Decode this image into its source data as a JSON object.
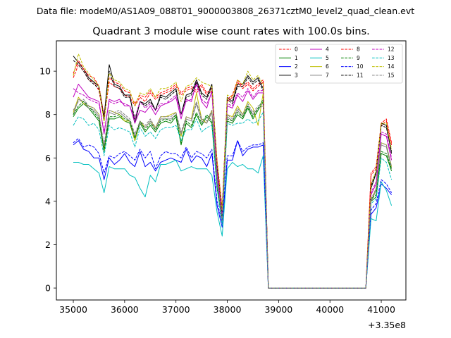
{
  "figure": {
    "suptitle": "Data file: modeM0/AS1A09_088T01_9000003808_26371cztM0_level2_quad_clean.evt"
  },
  "chart_data": {
    "type": "line",
    "title": "Quadrant 3 module wise count rates with 100.0s bins.",
    "xlabel": "",
    "ylabel": "",
    "x_offset_label": "+3.35e8",
    "xlim": [
      34670,
      41480
    ],
    "ylim": [
      -0.55,
      11.4
    ],
    "xticks": [
      35000,
      36000,
      37000,
      38000,
      39000,
      40000,
      41000
    ],
    "yticks": [
      0,
      2,
      4,
      6,
      8,
      10
    ],
    "grid": false,
    "legend": {
      "placement": "top-right",
      "columns": 4
    },
    "x": [
      35000,
      35100,
      35200,
      35300,
      35400,
      35500,
      35600,
      35700,
      35800,
      35900,
      36000,
      36100,
      36200,
      36300,
      36400,
      36500,
      36600,
      36700,
      36800,
      36900,
      37000,
      37100,
      37200,
      37300,
      37400,
      37500,
      37600,
      37700,
      37800,
      37900,
      38000,
      38100,
      38200,
      38300,
      38400,
      38500,
      38600,
      38700,
      38800,
      38900,
      39000,
      39100,
      39200,
      39300,
      39400,
      39500,
      39600,
      39700,
      39800,
      39900,
      40000,
      40100,
      40200,
      40300,
      40400,
      40500,
      40600,
      40700,
      40800,
      40900,
      41000,
      41100,
      41200
    ],
    "series": [
      {
        "name": "0",
        "color": "#ff0000",
        "dash": true,
        "values": [
          9.7,
          10.3,
          10.0,
          9.6,
          9.5,
          9.1,
          7.8,
          9.5,
          9.3,
          9.2,
          8.9,
          8.8,
          8.4,
          8.8,
          8.6,
          9.0,
          8.7,
          8.9,
          9.0,
          9.1,
          9.3,
          8.9,
          9.1,
          9.2,
          9.0,
          9.3,
          8.9,
          9.1,
          5.8,
          3.6,
          8.6,
          8.8,
          9.5,
          9.2,
          9.4,
          9.1,
          9.3,
          9.5,
          0.0,
          0.0,
          0.0,
          0.0,
          0.0,
          0.0,
          0.0,
          0.0,
          0.0,
          0.0,
          0.0,
          0.0,
          0.0,
          0.0,
          0.0,
          0.0,
          0.0,
          0.0,
          0.0,
          0.0,
          5.2,
          5.5,
          7.5,
          7.7,
          6.6
        ]
      },
      {
        "name": "1",
        "color": "#008000",
        "dash": false,
        "values": [
          7.9,
          8.3,
          8.5,
          8.3,
          8.0,
          7.7,
          6.3,
          7.8,
          7.8,
          7.9,
          7.7,
          7.6,
          6.8,
          7.6,
          7.2,
          7.5,
          7.2,
          7.6,
          7.7,
          7.6,
          7.9,
          6.6,
          7.6,
          7.4,
          8.0,
          7.5,
          7.9,
          7.6,
          4.6,
          3.1,
          7.7,
          7.6,
          8.0,
          7.8,
          8.3,
          7.8,
          8.2,
          8.6,
          0.0,
          0.0,
          0.0,
          0.0,
          0.0,
          0.0,
          0.0,
          0.0,
          0.0,
          0.0,
          0.0,
          0.0,
          0.0,
          0.0,
          0.0,
          0.0,
          0.0,
          0.0,
          0.0,
          0.0,
          4.0,
          4.2,
          6.2,
          6.1,
          5.4
        ]
      },
      {
        "name": "2",
        "color": "#0000ff",
        "dash": false,
        "values": [
          6.6,
          6.8,
          6.4,
          6.3,
          6.0,
          6.0,
          5.0,
          6.0,
          5.7,
          5.9,
          6.2,
          5.8,
          5.6,
          6.3,
          5.6,
          5.8,
          5.4,
          5.8,
          5.9,
          6.0,
          5.9,
          5.8,
          6.4,
          5.8,
          6.1,
          6.0,
          5.6,
          6.2,
          3.8,
          2.8,
          5.9,
          5.9,
          6.8,
          6.1,
          6.4,
          6.5,
          6.5,
          6.6,
          0.0,
          0.0,
          0.0,
          0.0,
          0.0,
          0.0,
          0.0,
          0.0,
          0.0,
          0.0,
          0.0,
          0.0,
          0.0,
          0.0,
          0.0,
          0.0,
          0.0,
          0.0,
          0.0,
          0.0,
          3.4,
          3.7,
          4.8,
          4.6,
          4.3
        ]
      },
      {
        "name": "3",
        "color": "#000000",
        "dash": false,
        "values": [
          10.7,
          10.4,
          10.1,
          9.7,
          9.5,
          9.3,
          7.9,
          10.3,
          9.4,
          9.3,
          8.9,
          8.9,
          7.6,
          8.6,
          8.5,
          8.7,
          8.2,
          8.9,
          8.8,
          9.0,
          9.2,
          8.0,
          8.9,
          9.0,
          9.6,
          9.0,
          8.8,
          9.4,
          5.7,
          3.5,
          8.8,
          8.6,
          9.4,
          9.4,
          9.8,
          9.5,
          9.7,
          9.2,
          0.0,
          0.0,
          0.0,
          0.0,
          0.0,
          0.0,
          0.0,
          0.0,
          0.0,
          0.0,
          0.0,
          0.0,
          0.0,
          0.0,
          0.0,
          0.0,
          0.0,
          0.0,
          0.0,
          0.0,
          4.6,
          5.3,
          7.6,
          7.5,
          6.2
        ]
      },
      {
        "name": "4",
        "color": "#bf00bf",
        "dash": false,
        "values": [
          8.8,
          9.4,
          9.1,
          8.8,
          8.7,
          8.6,
          7.1,
          8.7,
          8.6,
          8.7,
          8.4,
          8.4,
          7.6,
          8.2,
          8.1,
          8.4,
          8.0,
          8.4,
          8.5,
          8.6,
          8.8,
          7.8,
          8.7,
          8.6,
          9.5,
          8.6,
          8.3,
          9.1,
          5.2,
          3.2,
          8.4,
          8.3,
          8.9,
          8.6,
          9.1,
          8.7,
          9.0,
          9.0,
          0.0,
          0.0,
          0.0,
          0.0,
          0.0,
          0.0,
          0.0,
          0.0,
          0.0,
          0.0,
          0.0,
          0.0,
          0.0,
          0.0,
          0.0,
          0.0,
          0.0,
          0.0,
          0.0,
          0.0,
          4.3,
          4.8,
          7.1,
          7.0,
          5.9
        ]
      },
      {
        "name": "5",
        "color": "#00bfbf",
        "dash": false,
        "values": [
          5.8,
          5.8,
          5.7,
          5.7,
          5.5,
          5.3,
          4.4,
          5.6,
          5.5,
          5.5,
          5.5,
          5.2,
          5.1,
          4.6,
          4.2,
          5.2,
          4.9,
          5.7,
          5.7,
          5.8,
          5.9,
          5.4,
          5.5,
          5.6,
          5.5,
          5.5,
          5.5,
          5.2,
          3.5,
          2.4,
          5.5,
          5.8,
          5.6,
          5.7,
          5.5,
          5.5,
          5.3,
          6.1,
          0.0,
          0.0,
          0.0,
          0.0,
          0.0,
          0.0,
          0.0,
          0.0,
          0.0,
          0.0,
          0.0,
          0.0,
          0.0,
          0.0,
          0.0,
          0.0,
          0.0,
          0.0,
          0.0,
          0.0,
          3.2,
          3.1,
          4.9,
          4.5,
          3.8
        ]
      },
      {
        "name": "6",
        "color": "#bfbf00",
        "dash": false,
        "values": [
          8.1,
          8.8,
          8.5,
          8.4,
          8.3,
          8.0,
          6.4,
          8.2,
          8.1,
          8.0,
          7.7,
          7.7,
          6.8,
          7.7,
          7.4,
          7.7,
          7.4,
          7.9,
          7.9,
          8.0,
          8.1,
          7.0,
          7.9,
          7.8,
          9.0,
          7.8,
          7.6,
          8.2,
          4.9,
          3.0,
          8.0,
          7.9,
          8.4,
          8.0,
          8.6,
          8.3,
          7.5,
          9.0,
          0.0,
          0.0,
          0.0,
          0.0,
          0.0,
          0.0,
          0.0,
          0.0,
          0.0,
          0.0,
          0.0,
          0.0,
          0.0,
          0.0,
          0.0,
          0.0,
          0.0,
          0.0,
          0.0,
          0.0,
          4.0,
          4.6,
          6.7,
          6.6,
          5.6
        ]
      },
      {
        "name": "7",
        "color": "#808080",
        "dash": false,
        "values": [
          8.0,
          8.7,
          8.6,
          8.3,
          8.2,
          7.9,
          6.5,
          8.1,
          8.0,
          8.1,
          7.9,
          7.7,
          7.0,
          7.6,
          7.4,
          7.7,
          7.3,
          7.8,
          7.8,
          7.8,
          8.0,
          7.1,
          7.8,
          7.7,
          8.5,
          7.7,
          7.6,
          8.1,
          4.9,
          3.0,
          7.9,
          7.7,
          8.2,
          7.9,
          8.4,
          8.0,
          8.3,
          8.4,
          0.0,
          0.0,
          0.0,
          0.0,
          0.0,
          0.0,
          0.0,
          0.0,
          0.0,
          0.0,
          0.0,
          0.0,
          0.0,
          0.0,
          0.0,
          0.0,
          0.0,
          0.0,
          0.0,
          0.0,
          4.0,
          4.5,
          6.6,
          6.5,
          5.5
        ]
      },
      {
        "name": "8",
        "color": "#ff0000",
        "dash": true,
        "values": [
          9.9,
          10.5,
          10.1,
          9.8,
          9.7,
          9.3,
          7.9,
          9.7,
          9.5,
          9.4,
          9.1,
          9.0,
          8.5,
          8.9,
          8.8,
          9.1,
          8.8,
          9.0,
          9.1,
          9.2,
          9.4,
          9.0,
          9.2,
          9.3,
          9.1,
          9.4,
          9.0,
          9.2,
          5.9,
          3.7,
          8.7,
          8.9,
          9.6,
          9.3,
          9.5,
          9.2,
          9.4,
          9.6,
          0.0,
          0.0,
          0.0,
          0.0,
          0.0,
          0.0,
          0.0,
          0.0,
          0.0,
          0.0,
          0.0,
          0.0,
          0.0,
          0.0,
          0.0,
          0.0,
          0.0,
          0.0,
          0.0,
          0.0,
          5.3,
          5.6,
          7.6,
          7.8,
          6.7
        ]
      },
      {
        "name": "9",
        "color": "#008000",
        "dash": true,
        "values": [
          8.0,
          8.4,
          8.6,
          8.4,
          8.1,
          7.8,
          6.4,
          7.9,
          7.9,
          8.0,
          7.8,
          7.7,
          6.9,
          7.7,
          7.3,
          7.6,
          7.3,
          7.7,
          7.8,
          7.7,
          8.0,
          6.7,
          7.7,
          7.5,
          8.1,
          7.6,
          8.0,
          7.7,
          4.7,
          3.2,
          7.8,
          7.7,
          8.1,
          7.9,
          8.4,
          7.9,
          8.3,
          8.7,
          0.0,
          0.0,
          0.0,
          0.0,
          0.0,
          0.0,
          0.0,
          0.0,
          0.0,
          0.0,
          0.0,
          0.0,
          0.0,
          0.0,
          0.0,
          0.0,
          0.0,
          0.0,
          0.0,
          0.0,
          4.1,
          4.3,
          6.3,
          6.2,
          5.5
        ]
      },
      {
        "name": "10",
        "color": "#0000ff",
        "dash": true,
        "values": [
          6.7,
          6.9,
          6.5,
          6.6,
          6.5,
          6.2,
          5.3,
          6.1,
          6.0,
          6.2,
          6.3,
          6.1,
          5.9,
          6.4,
          6.0,
          6.3,
          5.5,
          6.1,
          6.3,
          6.2,
          6.2,
          6.0,
          6.5,
          6.0,
          6.3,
          6.2,
          6.0,
          6.4,
          4.0,
          3.0,
          6.1,
          6.1,
          6.8,
          6.3,
          6.5,
          6.6,
          6.6,
          6.7,
          0.0,
          0.0,
          0.0,
          0.0,
          0.0,
          0.0,
          0.0,
          0.0,
          0.0,
          0.0,
          0.0,
          0.0,
          0.0,
          0.0,
          0.0,
          0.0,
          0.0,
          0.0,
          0.0,
          0.0,
          3.6,
          3.9,
          5.0,
          4.8,
          4.4
        ]
      },
      {
        "name": "11",
        "color": "#000000",
        "dash": true,
        "values": [
          10.5,
          10.3,
          10.0,
          9.6,
          9.4,
          9.2,
          7.8,
          10.0,
          9.3,
          9.2,
          8.8,
          8.8,
          7.8,
          8.6,
          8.4,
          8.6,
          8.2,
          8.8,
          8.7,
          8.9,
          9.1,
          8.0,
          8.8,
          8.9,
          9.5,
          8.9,
          8.7,
          9.3,
          5.6,
          3.4,
          8.7,
          8.5,
          9.3,
          9.3,
          9.7,
          9.4,
          9.6,
          9.1,
          0.0,
          0.0,
          0.0,
          0.0,
          0.0,
          0.0,
          0.0,
          0.0,
          0.0,
          0.0,
          0.0,
          0.0,
          0.0,
          0.0,
          0.0,
          0.0,
          0.0,
          0.0,
          0.0,
          0.0,
          4.7,
          5.4,
          7.5,
          7.4,
          6.3
        ]
      },
      {
        "name": "12",
        "color": "#bf00bf",
        "dash": true,
        "values": [
          9.2,
          9.0,
          8.9,
          8.7,
          8.6,
          8.5,
          7.2,
          8.6,
          8.5,
          8.6,
          8.5,
          8.4,
          7.8,
          8.6,
          8.3,
          8.5,
          8.2,
          8.5,
          8.5,
          8.7,
          8.9,
          8.0,
          8.6,
          8.7,
          9.4,
          8.7,
          8.5,
          9.0,
          5.4,
          3.4,
          8.5,
          8.4,
          9.0,
          8.8,
          9.2,
          8.8,
          9.1,
          9.1,
          0.0,
          0.0,
          0.0,
          0.0,
          0.0,
          0.0,
          0.0,
          0.0,
          0.0,
          0.0,
          0.0,
          0.0,
          0.0,
          0.0,
          0.0,
          0.0,
          0.0,
          0.0,
          0.0,
          0.0,
          4.4,
          4.9,
          7.2,
          7.1,
          6.0
        ]
      },
      {
        "name": "13",
        "color": "#00bfbf",
        "dash": true,
        "values": [
          7.5,
          7.9,
          7.8,
          7.5,
          7.6,
          7.3,
          6.1,
          7.5,
          7.3,
          7.4,
          7.3,
          7.2,
          6.5,
          7.4,
          7.0,
          7.2,
          6.9,
          7.3,
          7.4,
          7.4,
          7.5,
          6.8,
          7.3,
          7.3,
          7.8,
          7.2,
          7.4,
          7.5,
          4.6,
          2.9,
          7.6,
          7.5,
          7.6,
          7.6,
          7.8,
          7.6,
          7.7,
          8.1,
          0.0,
          0.0,
          0.0,
          0.0,
          0.0,
          0.0,
          0.0,
          0.0,
          0.0,
          0.0,
          0.0,
          0.0,
          0.0,
          0.0,
          0.0,
          0.0,
          0.0,
          0.0,
          0.0,
          0.0,
          3.9,
          4.1,
          6.0,
          5.8,
          5.0
        ]
      },
      {
        "name": "14",
        "color": "#bfbf00",
        "dash": true,
        "values": [
          9.8,
          10.8,
          10.2,
          9.9,
          9.6,
          9.3,
          7.6,
          9.9,
          9.6,
          9.5,
          9.2,
          9.1,
          8.4,
          9.0,
          8.9,
          9.2,
          8.8,
          9.2,
          9.2,
          9.3,
          9.5,
          8.6,
          9.3,
          9.4,
          9.7,
          9.5,
          9.4,
          9.3,
          5.8,
          3.6,
          8.9,
          8.8,
          9.6,
          9.4,
          10.0,
          9.6,
          9.8,
          9.4,
          0.0,
          0.0,
          0.0,
          0.0,
          0.0,
          0.0,
          0.0,
          0.0,
          0.0,
          0.0,
          0.0,
          0.0,
          0.0,
          0.0,
          0.0,
          0.0,
          0.0,
          0.0,
          0.0,
          0.0,
          4.8,
          5.4,
          7.6,
          7.6,
          6.4
        ]
      },
      {
        "name": "15",
        "color": "#808080",
        "dash": true,
        "values": [
          8.2,
          8.6,
          8.7,
          8.4,
          8.3,
          8.0,
          6.6,
          8.2,
          8.1,
          8.2,
          8.0,
          7.8,
          7.1,
          7.7,
          7.5,
          7.8,
          7.4,
          7.9,
          7.9,
          7.9,
          8.1,
          7.2,
          7.9,
          7.8,
          8.6,
          7.8,
          7.7,
          8.2,
          5.0,
          3.1,
          8.0,
          7.8,
          8.3,
          8.0,
          8.5,
          8.1,
          8.4,
          8.5,
          0.0,
          0.0,
          0.0,
          0.0,
          0.0,
          0.0,
          0.0,
          0.0,
          0.0,
          0.0,
          0.0,
          0.0,
          0.0,
          0.0,
          0.0,
          0.0,
          0.0,
          0.0,
          0.0,
          0.0,
          4.1,
          4.6,
          6.7,
          6.6,
          5.6
        ]
      }
    ]
  }
}
